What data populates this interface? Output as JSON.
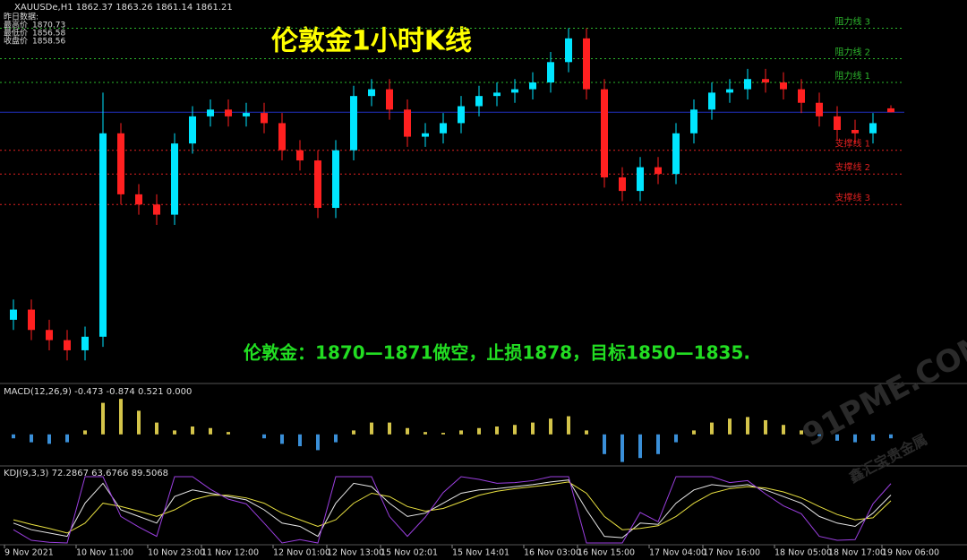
{
  "chart_data": [
    {
      "type": "candlestick",
      "header": "XAUUSDe,H1  1862.37 1863.26 1861.14 1861.21",
      "prior_day_title": "昨日数据:",
      "prior_day": [
        {
          "label": "最高价",
          "value": 1870.73
        },
        {
          "label": "最低价",
          "value": 1856.58
        },
        {
          "label": "收盘价",
          "value": 1858.56
        }
      ],
      "title": "伦敦金1小时K线",
      "annotation": "伦敦金：1870—1871做空，止损1878，目标1850—1835.",
      "categories": [
        "9 Nov 2021",
        null,
        null,
        null,
        "10 Nov 11:00",
        null,
        null,
        null,
        "10 Nov 23:00",
        null,
        null,
        "11 Nov 12:00",
        null,
        null,
        null,
        "12 Nov 01:00",
        null,
        null,
        "12 Nov 13:00",
        null,
        null,
        "15 Nov 02:01",
        null,
        null,
        null,
        "15 Nov 14:01",
        null,
        null,
        null,
        "16 Nov 03:00",
        null,
        null,
        "16 Nov 15:00",
        null,
        null,
        null,
        "17 Nov 04:00",
        null,
        null,
        "17 Nov 16:00",
        null,
        null,
        null,
        "18 Nov 05:00",
        null,
        null,
        "18 Nov 17:00",
        null,
        null,
        "19 Nov 06:00"
      ],
      "open": [
        1800,
        1803,
        1797,
        1794,
        1791,
        1795,
        1855,
        1837,
        1834,
        1831,
        1852,
        1860,
        1862,
        1860,
        1861,
        1858,
        1850,
        1847,
        1833,
        1850,
        1866,
        1868,
        1862,
        1854,
        1855,
        1858,
        1863,
        1866,
        1867,
        1868,
        1870,
        1876,
        1883,
        1868,
        1842,
        1838,
        1845,
        1843,
        1855,
        1862,
        1867,
        1868,
        1871,
        1870,
        1868,
        1864,
        1860,
        1856,
        1855,
        1862.37
      ],
      "high": [
        1806,
        1806,
        1800,
        1797,
        1798,
        1867,
        1858,
        1840,
        1837,
        1855,
        1863,
        1865,
        1865,
        1864,
        1864,
        1861,
        1853,
        1850,
        1853,
        1869,
        1871,
        1871,
        1865,
        1858,
        1861,
        1866,
        1869,
        1870,
        1871,
        1873,
        1879,
        1886,
        1886,
        1871,
        1845,
        1848,
        1848,
        1858,
        1865,
        1870,
        1871,
        1874,
        1874,
        1873,
        1871,
        1867,
        1863,
        1859,
        1861,
        1863.26
      ],
      "low": [
        1797,
        1794,
        1791,
        1788,
        1788,
        1792,
        1834,
        1831,
        1828,
        1828,
        1849,
        1857,
        1857,
        1857,
        1855,
        1847,
        1844,
        1830,
        1830,
        1847,
        1863,
        1859,
        1851,
        1851,
        1852,
        1855,
        1860,
        1863,
        1864,
        1865,
        1867,
        1873,
        1865,
        1839,
        1835,
        1835,
        1840,
        1840,
        1852,
        1859,
        1864,
        1865,
        1867,
        1865,
        1861,
        1857,
        1853,
        1852,
        1852,
        1861.14
      ],
      "close": [
        1803,
        1797,
        1794,
        1791,
        1795,
        1855,
        1837,
        1834,
        1831,
        1852,
        1860,
        1862,
        1860,
        1861,
        1858,
        1850,
        1847,
        1833,
        1850,
        1866,
        1868,
        1862,
        1854,
        1855,
        1858,
        1863,
        1866,
        1867,
        1868,
        1870,
        1876,
        1883,
        1868,
        1842,
        1838,
        1845,
        1843,
        1855,
        1862,
        1867,
        1868,
        1871,
        1870,
        1868,
        1864,
        1860,
        1856,
        1855,
        1858,
        1861.21
      ],
      "up_color": "#00e5ff",
      "down_color": "#ff2020",
      "ylim": [
        1782,
        1893
      ],
      "levels": [
        {
          "label": "阻力线 3",
          "value": 1886,
          "color": "#2db82d"
        },
        {
          "label": "阻力线 2",
          "value": 1877,
          "color": "#2db82d"
        },
        {
          "label": "阻力线 1",
          "value": 1870,
          "color": "#2db82d"
        },
        {
          "label": "支撑线 1",
          "value": 1850,
          "color": "#e02020"
        },
        {
          "label": "支撑线 2",
          "value": 1843,
          "color": "#e02020"
        },
        {
          "label": "支撑线 3",
          "value": 1834,
          "color": "#e02020"
        }
      ]
    },
    {
      "type": "histogram",
      "title": "MACD(12,26,9) -0.473 -0.874 0.521 0.000",
      "values": [
        -0.5,
        -1,
        -1.2,
        -1,
        0.5,
        4,
        4.5,
        3,
        1.5,
        0.5,
        1,
        0.8,
        0.3,
        0,
        -0.5,
        -1.2,
        -1.5,
        -2,
        -1,
        0.5,
        1.5,
        1.5,
        0.8,
        0.3,
        0.2,
        0.5,
        0.8,
        1,
        1.2,
        1.5,
        2,
        2.3,
        0.5,
        -2.5,
        -3.5,
        -3,
        -2.5,
        -1,
        0.5,
        1.5,
        2,
        2.2,
        1.8,
        1.2,
        0.5,
        -0.2,
        -0.8,
        -1,
        -0.8,
        -0.5
      ],
      "up_color": "#d4c44a",
      "down_color": "#3a8fd8",
      "ylim": [
        -4,
        6
      ]
    },
    {
      "type": "line",
      "title": "KDJ(9,3,3) 72.2867 63.6766 89.5068",
      "series": [
        {
          "color": "#e8e8e8",
          "values": [
            30,
            20,
            15,
            10,
            60,
            90,
            50,
            40,
            30,
            70,
            80,
            75,
            70,
            65,
            50,
            30,
            25,
            10,
            60,
            90,
            85,
            60,
            40,
            45,
            60,
            75,
            80,
            82,
            85,
            88,
            92,
            95,
            50,
            10,
            8,
            30,
            28,
            60,
            80,
            88,
            85,
            88,
            80,
            70,
            60,
            40,
            30,
            25,
            45,
            72.2867
          ]
        },
        {
          "color": "#e8e040",
          "values": [
            35,
            28,
            22,
            15,
            30,
            60,
            55,
            48,
            40,
            50,
            65,
            72,
            72,
            68,
            60,
            45,
            35,
            25,
            35,
            60,
            75,
            70,
            55,
            48,
            52,
            62,
            72,
            78,
            82,
            85,
            88,
            92,
            75,
            40,
            20,
            22,
            26,
            40,
            60,
            75,
            82,
            85,
            83,
            77,
            68,
            55,
            43,
            35,
            38,
            63.6766
          ]
        },
        {
          "color": "#9b3fe0",
          "values": [
            20,
            4,
            1,
            0,
            100,
            100,
            40,
            24,
            10,
            100,
            100,
            81,
            66,
            59,
            30,
            0,
            5,
            0,
            100,
            100,
            100,
            40,
            10,
            39,
            76,
            100,
            96,
            90,
            91,
            94,
            100,
            100,
            0,
            0,
            0,
            46,
            32,
            100,
            100,
            100,
            91,
            94,
            74,
            56,
            44,
            10,
            4,
            5,
            59,
            89.5068
          ]
        }
      ],
      "ylim": [
        0,
        100
      ]
    }
  ],
  "watermark": {
    "brand": "91PME.COM",
    "subtitle": "鑫汇宝贵金属"
  }
}
